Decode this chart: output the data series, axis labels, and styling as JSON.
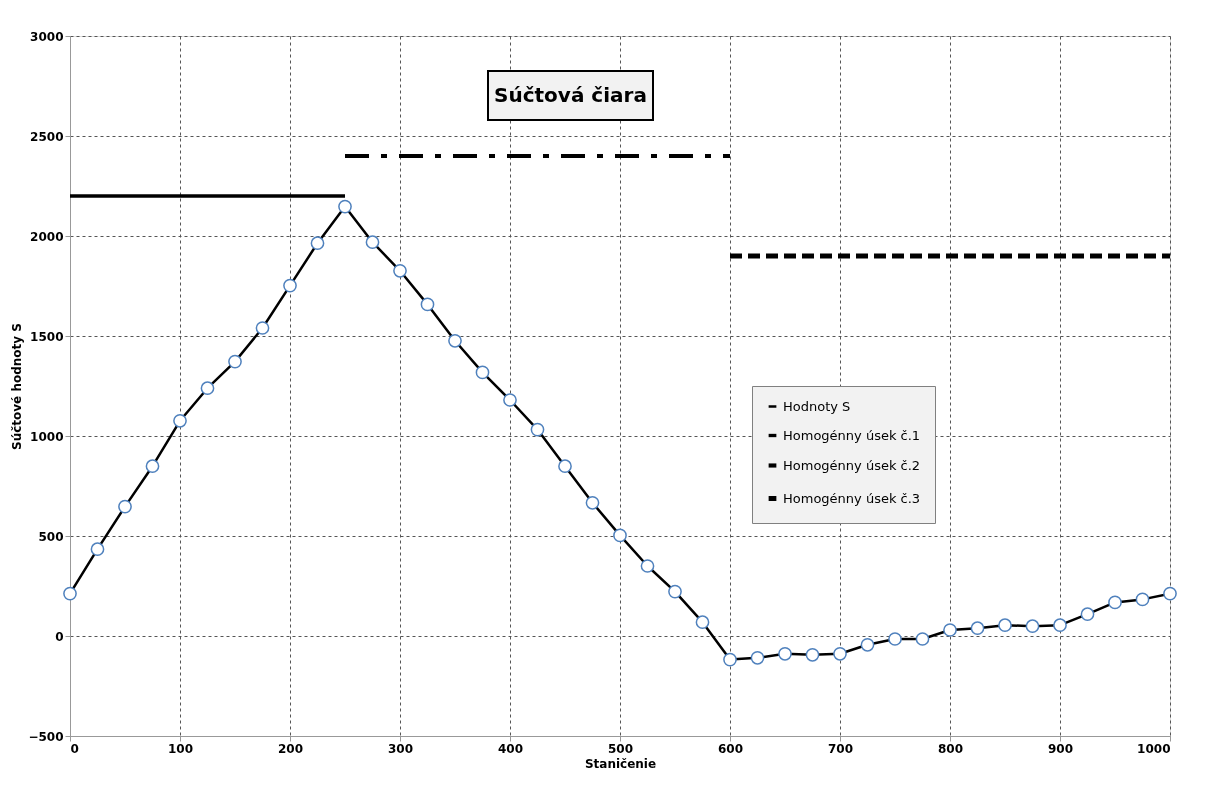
{
  "chart_data": {
    "type": "line",
    "title": "Súčtová čiara",
    "xlabel": "Staničenie",
    "ylabel": "Súčtové hodnoty S",
    "xlim": [
      0,
      1000
    ],
    "xticks": [
      0,
      100,
      200,
      300,
      400,
      500,
      600,
      700,
      800,
      900,
      1000
    ],
    "ylim": [
      -500,
      3000
    ],
    "yticks": [
      -500,
      0,
      500,
      1000,
      1500,
      2000,
      2500,
      3000
    ],
    "grid": true,
    "legend": "right",
    "series": [
      {
        "name": "Hodnoty S",
        "color": "#000000",
        "marker": "circle",
        "line_style": "solid",
        "x": [
          0,
          25,
          50,
          75,
          100,
          125,
          150,
          175,
          200,
          225,
          250,
          275,
          300,
          325,
          350,
          375,
          400,
          425,
          450,
          475,
          500,
          525,
          550,
          575,
          600,
          625,
          650,
          675,
          700,
          725,
          750,
          775,
          800,
          825,
          850,
          875,
          900,
          925,
          950,
          975,
          1000
        ],
        "values": [
          212,
          434,
          647,
          849,
          1076,
          1239,
          1372,
          1540,
          1752,
          1964,
          2147,
          1969,
          1826,
          1658,
          1476,
          1318,
          1180,
          1032,
          849,
          666,
          503,
          350,
          222,
          69,
          -118,
          -109,
          -89,
          -94,
          -89,
          -44,
          -15,
          -15,
          30,
          39,
          54,
          49,
          54,
          109,
          168,
          183,
          212
        ]
      },
      {
        "name": "Homogénny úsek č.1",
        "color": "#000000",
        "marker": "none",
        "line_style": "solid",
        "x": [
          0,
          250
        ],
        "values": [
          2200,
          2200
        ]
      },
      {
        "name": "Homogénny úsek č.2",
        "color": "#000000",
        "marker": "none",
        "line_style": "dashdot",
        "x": [
          250,
          600
        ],
        "values": [
          2400,
          2400
        ]
      },
      {
        "name": "Homogénny úsek č.3",
        "color": "#000000",
        "marker": "none",
        "line_style": "dashed",
        "x": [
          600,
          1000
        ],
        "values": [
          1900,
          1900
        ]
      }
    ]
  }
}
